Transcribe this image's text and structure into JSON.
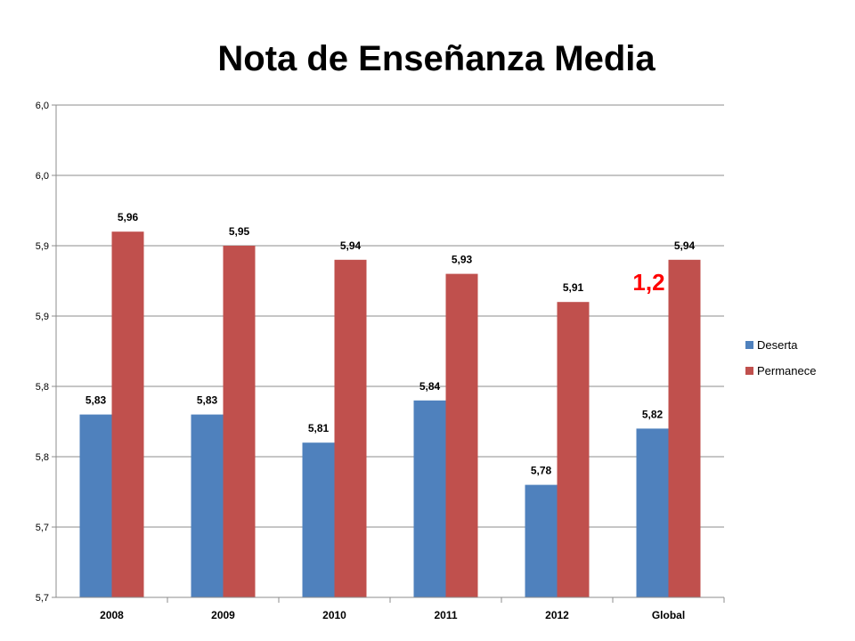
{
  "chart_data": {
    "type": "bar",
    "title": "Nota de Enseñanza Media",
    "xlabel": "",
    "ylabel": "",
    "categories": [
      "2008",
      "2009",
      "2010",
      "2011",
      "2012",
      "Global"
    ],
    "series": [
      {
        "name": "Deserta",
        "color": "#4f81bd",
        "values": [
          5.83,
          5.83,
          5.81,
          5.84,
          5.78,
          5.82
        ],
        "labels": [
          "5,83",
          "5,83",
          "5,81",
          "5,84",
          "5,78",
          "5,82"
        ]
      },
      {
        "name": "Permanece",
        "color": "#c0504d",
        "values": [
          5.96,
          5.95,
          5.94,
          5.93,
          5.91,
          5.94
        ],
        "labels": [
          "5,96",
          "5,95",
          "5,94",
          "5,93",
          "5,91",
          "5,94"
        ]
      }
    ],
    "ylim": [
      5.7,
      6.05
    ],
    "yticks": [
      5.7,
      5.75,
      5.8,
      5.85,
      5.9,
      5.95,
      6.0,
      6.05
    ],
    "ytick_labels": [
      "5,7",
      "5,7",
      "5,8",
      "5,8",
      "5,9",
      "5,9",
      "6,0",
      "6,0"
    ],
    "grid": true,
    "legend_position": "right",
    "annotation": {
      "text": "1,2",
      "color": "#ff0000",
      "category": "Global"
    }
  }
}
